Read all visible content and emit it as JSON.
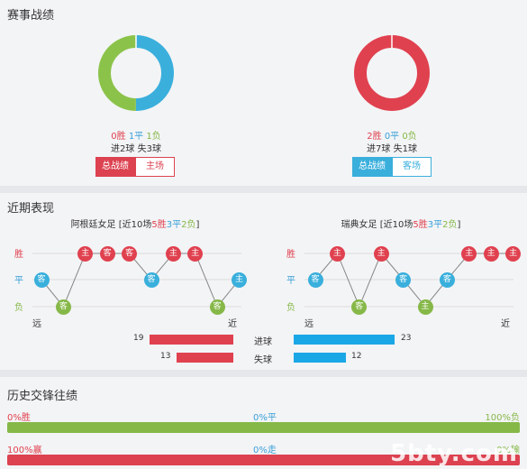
{
  "section1": {
    "title": "赛事战绩",
    "left": {
      "win_label": "0胜",
      "draw_label": "1平",
      "loss_label": "1负",
      "goals_for": "进2球",
      "goals_against": "失3球",
      "donut": [
        {
          "value": 1,
          "color": "#3aafdc"
        },
        {
          "value": 1,
          "color": "#8bc34a"
        }
      ],
      "tab_active": "总战绩",
      "tab_other": "主场"
    },
    "right": {
      "win_label": "2胜",
      "draw_label": "0平",
      "loss_label": "0负",
      "goals_for": "进7球",
      "goals_against": "失1球",
      "donut": [
        {
          "value": 1,
          "color": "#e0414f"
        }
      ],
      "tab_active": "总战绩",
      "tab_other": "客场"
    }
  },
  "section2": {
    "title": "近期表现",
    "left_team": {
      "name": "阿根廷女足",
      "prefix": "[近10场",
      "w": "5胜",
      "d": "3平",
      "l": "2负",
      "suffix": "]",
      "results": [
        "平",
        "负",
        "胜",
        "胜",
        "胜",
        "平",
        "胜",
        "胜",
        "负",
        "平"
      ]
    },
    "right_team": {
      "name": "瑞典女足",
      "prefix": "[近10场",
      "w": "5胜",
      "d": "3平",
      "l": "2负",
      "suffix": "]",
      "results": [
        "平",
        "胜",
        "负",
        "胜",
        "平",
        "负",
        "平",
        "胜",
        "胜",
        "胜"
      ]
    },
    "left_venues": [
      "客",
      "客",
      "主",
      "客",
      "客",
      "客",
      "主",
      "主",
      "客",
      "主"
    ],
    "right_venues": [
      "客",
      "主",
      "客",
      "主",
      "客",
      "主",
      "客",
      "主",
      "主",
      "主"
    ],
    "y_labels": {
      "win": "胜",
      "draw": "平",
      "loss": "负"
    },
    "far_label": "远",
    "near_label": "近",
    "stats": [
      {
        "label": "进球",
        "left": 19,
        "right": 23
      },
      {
        "label": "失球",
        "left": 13,
        "right": 12
      }
    ]
  },
  "section3": {
    "title": "历史交锋往绩",
    "row1": {
      "left": "0%胜",
      "mid": "0%平",
      "right": "100%负"
    },
    "row2": {
      "left": "100%赢",
      "mid": "0%走",
      "right": "0%输"
    }
  },
  "watermark": "5bty.com"
}
